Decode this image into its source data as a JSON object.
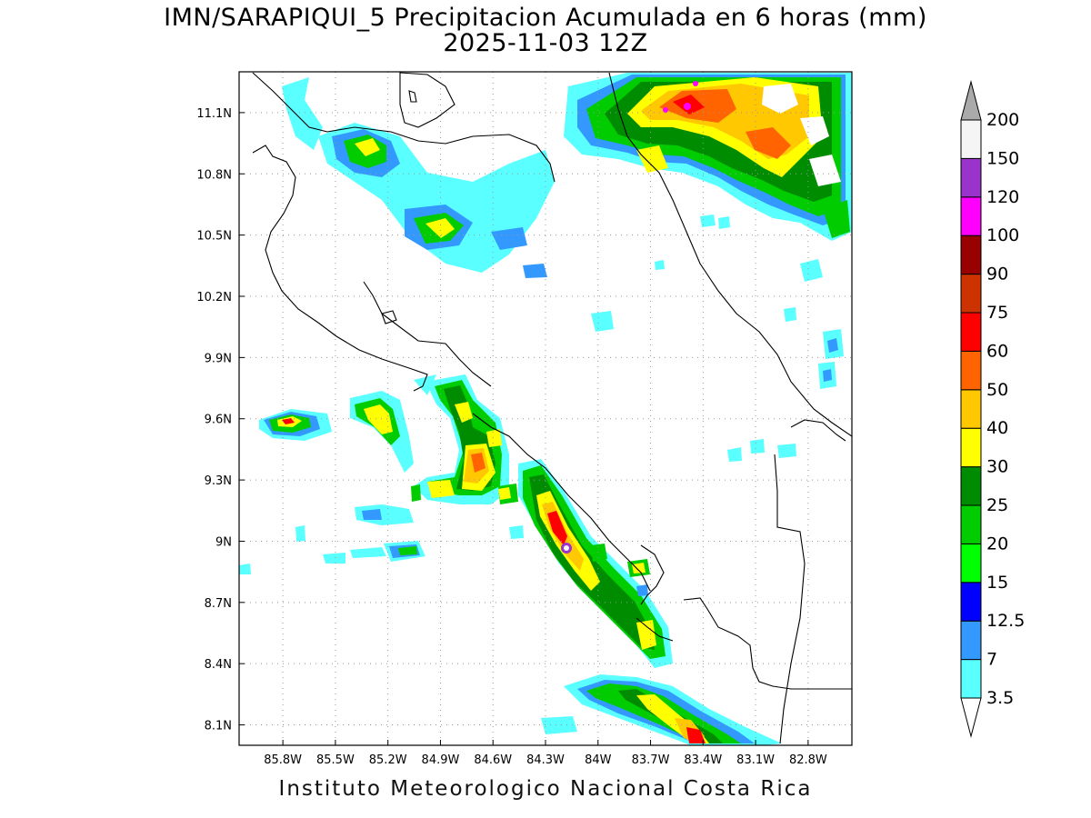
{
  "title": {
    "line1": "IMN/SARAPIQUI_5 Precipitacion Acumulada en 6 horas (mm)",
    "line2": "2025-11-03 12Z"
  },
  "footer": "Instituto Meteorologico Nacional Costa Rica",
  "map": {
    "lon_range": [
      -86.05,
      -82.55
    ],
    "lat_range": [
      8.0,
      11.3
    ],
    "lon_ticks": [
      "85.8W",
      "85.5W",
      "85.2W",
      "84.9W",
      "84.6W",
      "84.3W",
      "84W",
      "83.7W",
      "83.4W",
      "83.1W",
      "82.8W"
    ],
    "lat_ticks": [
      "8.1N",
      "8.4N",
      "8.7N",
      "9N",
      "9.3N",
      "9.6N",
      "9.9N",
      "10.2N",
      "10.5N",
      "10.8N",
      "11.1N"
    ],
    "grid": true
  },
  "colorbar": {
    "levels": [
      "3.5",
      "7",
      "12.5",
      "15",
      "20",
      "25",
      "30",
      "40",
      "50",
      "60",
      "75",
      "90",
      "100",
      "120",
      "150",
      "200"
    ],
    "colors": [
      "#5affff",
      "#3399ff",
      "#0000ff",
      "#00ff00",
      "#00cc00",
      "#008c00",
      "#ffff00",
      "#ffc800",
      "#ff6400",
      "#ff0000",
      "#cc3300",
      "#990000",
      "#ff00ff",
      "#9933cc",
      "#f5f5f5"
    ],
    "under_color": "#ffffff",
    "over_color": "#aaaaaa"
  }
}
